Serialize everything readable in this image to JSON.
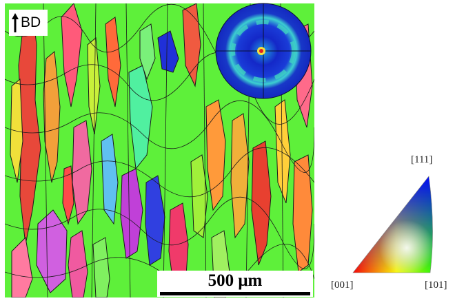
{
  "image": {
    "build_direction_label": "BD",
    "scale_bar_label": "500 μm"
  },
  "ipf_key": {
    "labels": [
      "[111]",
      "[001]",
      "[101]"
    ],
    "corner_colors": {
      "001": "#ff0000",
      "101": "#00ff00",
      "111": "#0000ff"
    }
  },
  "colors": {
    "dominant_grain": "#5ef03a",
    "pole_figure_background": "#1428c8",
    "pole_figure_ring": "#3cd0d0"
  },
  "icons": [
    "up-arrow-icon"
  ]
}
